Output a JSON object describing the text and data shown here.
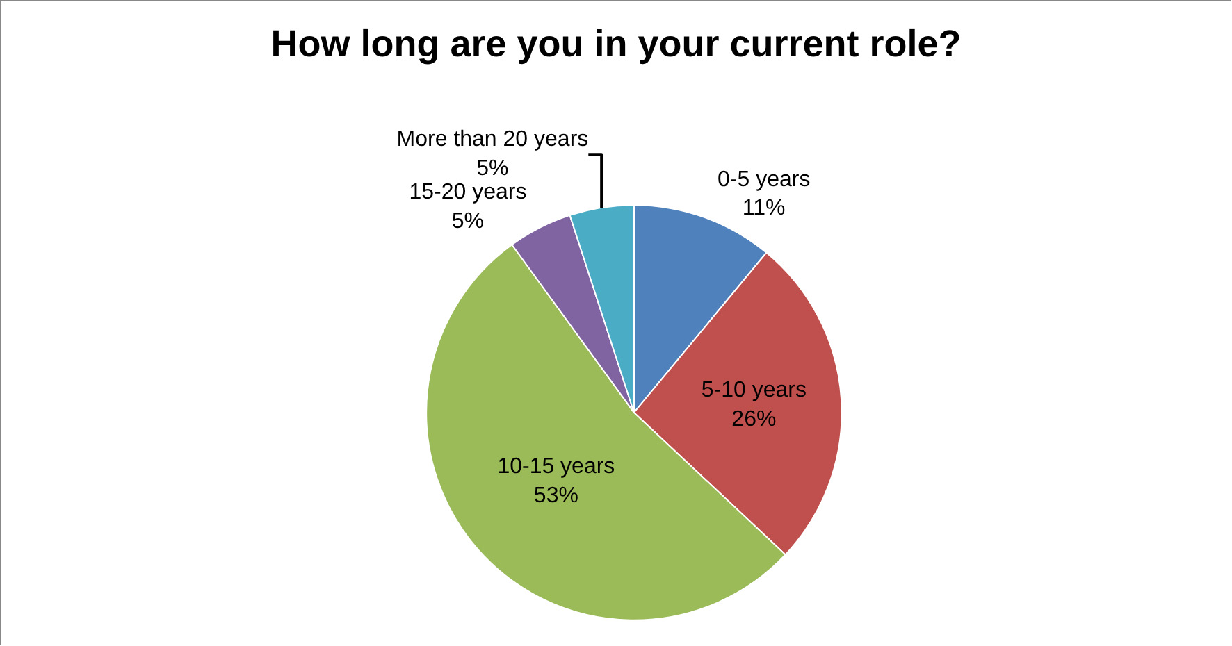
{
  "chart_data": {
    "type": "pie",
    "title": "How long are you in your current role?",
    "categories": [
      "0-5 years",
      "5-10 years",
      "10-15 years",
      "15-20 years",
      "More than 20 years"
    ],
    "values": [
      11,
      26,
      53,
      5,
      5
    ],
    "value_labels": [
      "11%",
      "26%",
      "53%",
      "5%",
      "5%"
    ],
    "colors": [
      "#4f81bd",
      "#c0504d",
      "#9bbb59",
      "#8064a2",
      "#4bacc6"
    ]
  }
}
